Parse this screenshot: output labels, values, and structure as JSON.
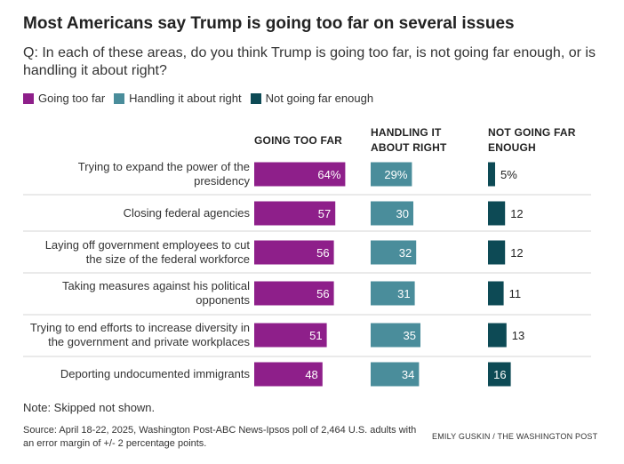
{
  "title": "Most Americans say Trump is going too far on several issues",
  "subtitle": "Q: In each of these areas, do you think Trump is going too far, is not going far enough, or is handling it about right?",
  "legend": [
    {
      "label": "Going too far",
      "color": "#8e1f8a"
    },
    {
      "label": "Handling it about right",
      "color": "#4a8d9b"
    },
    {
      "label": "Not going far enough",
      "color": "#0d4a55"
    }
  ],
  "columns": [
    {
      "heading_line1": "GOING TOO FAR",
      "heading_line2": ""
    },
    {
      "heading_line1": "HANDLING IT",
      "heading_line2": "ABOUT RIGHT"
    },
    {
      "heading_line1": "NOT GOING FAR",
      "heading_line2": "ENOUGH"
    }
  ],
  "chart_data": {
    "type": "bar",
    "orientation": "horizontal",
    "categories": [
      [
        "Trying to expand the power of the",
        "presidency"
      ],
      [
        "Closing federal agencies"
      ],
      [
        "Laying off government employees to cut",
        "the size of the federal workforce"
      ],
      [
        "Taking measures against his political",
        "opponents"
      ],
      [
        "Trying to end efforts to increase diversity in",
        "the government and private workplaces"
      ],
      [
        "Deporting undocumented immigrants"
      ]
    ],
    "series": [
      {
        "name": "Going too far",
        "color": "#8e1f8a",
        "values": [
          64,
          57,
          56,
          56,
          51,
          48
        ],
        "labels": [
          "64%",
          "57",
          "56",
          "56",
          "51",
          "48"
        ]
      },
      {
        "name": "Handling it about right",
        "color": "#4a8d9b",
        "values": [
          29,
          30,
          32,
          31,
          35,
          34
        ],
        "labels": [
          "29%",
          "30",
          "32",
          "31",
          "35",
          "34"
        ]
      },
      {
        "name": "Not going far enough",
        "color": "#0d4a55",
        "values": [
          5,
          12,
          12,
          11,
          13,
          16
        ],
        "labels": [
          "5%",
          "12",
          "12",
          "11",
          "13",
          "16"
        ]
      }
    ]
  },
  "note": "Note: Skipped not shown.",
  "source": "Source: April 18-22, 2025, Washington Post-ABC News-Ipsos poll of 2,464 U.S. adults with an error margin of +/- 2 percentage points.",
  "credit": "EMILY GUSKIN / THE WASHINGTON POST"
}
